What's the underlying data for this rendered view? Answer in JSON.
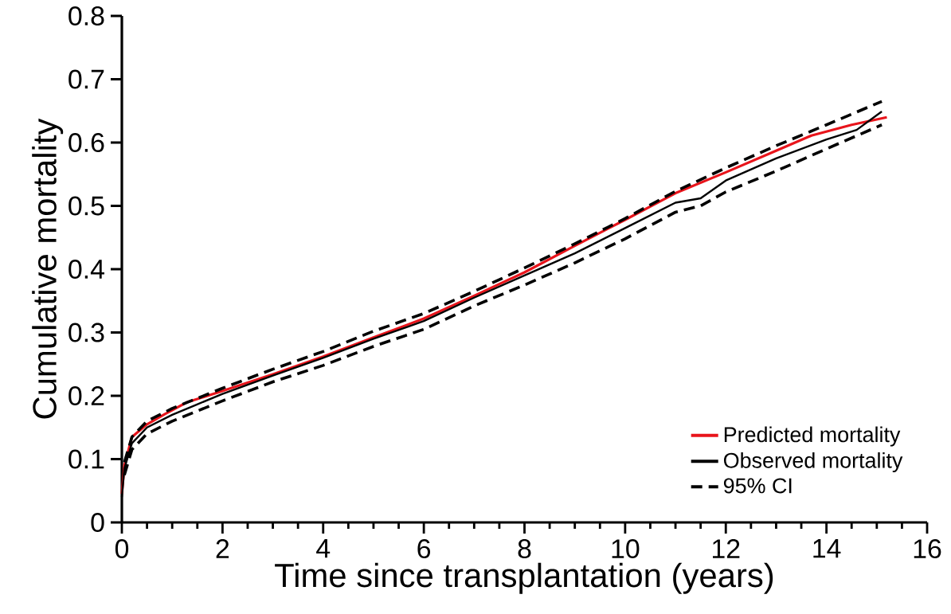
{
  "chart_data": {
    "type": "line",
    "xlabel": "Time since transplantation (years)",
    "ylabel": "Cumulative mortality",
    "xlim": [
      0,
      16
    ],
    "ylim": [
      0,
      0.8
    ],
    "xticks": [
      0,
      2,
      4,
      6,
      8,
      10,
      12,
      14,
      16
    ],
    "yticks": [
      0,
      0.1,
      0.2,
      0.3,
      0.4,
      0.5,
      0.6,
      0.7,
      0.8
    ],
    "legend": "bottom right",
    "marker": "none",
    "series": [
      {
        "name": "Predicted mortality",
        "color": "#e8141b",
        "line_style": "solid",
        "x": [
          0,
          0.05,
          0.2,
          0.5,
          0.85,
          1.3,
          1.9,
          3,
          4,
          5,
          6,
          7,
          8,
          9,
          10,
          11,
          12,
          13,
          13.7,
          14.5,
          15.2
        ],
        "values": [
          0.045,
          0.09,
          0.135,
          0.155,
          0.171,
          0.19,
          0.205,
          0.234,
          0.262,
          0.292,
          0.322,
          0.358,
          0.395,
          0.437,
          0.478,
          0.52,
          0.553,
          0.587,
          0.611,
          0.628,
          0.64
        ]
      },
      {
        "name": "Observed mortality",
        "color": "#000000",
        "line_style": "solid",
        "x": [
          0,
          0.05,
          0.2,
          0.5,
          1,
          2,
          3,
          4,
          5,
          6,
          7,
          8,
          9,
          10,
          11,
          11.5,
          12,
          13,
          14,
          14.6,
          15.1
        ],
        "values": [
          0.04,
          0.085,
          0.125,
          0.15,
          0.17,
          0.203,
          0.232,
          0.26,
          0.29,
          0.318,
          0.355,
          0.39,
          0.425,
          0.465,
          0.505,
          0.512,
          0.54,
          0.575,
          0.605,
          0.62,
          0.649
        ]
      },
      {
        "name": "95% CI",
        "color": "#000000",
        "line_style": "dashed",
        "x": [
          0.05,
          0.2,
          0.5,
          1,
          2,
          3,
          4,
          5,
          6,
          7,
          8,
          9,
          10,
          11,
          12,
          13,
          14,
          15.1
        ],
        "values": [
          0.095,
          0.135,
          0.16,
          0.18,
          0.212,
          0.242,
          0.27,
          0.302,
          0.33,
          0.365,
          0.402,
          0.44,
          0.48,
          0.523,
          0.56,
          0.595,
          0.628,
          0.665
        ]
      },
      {
        "color": "#000000",
        "line_style": "dashed",
        "x": [
          0.05,
          0.2,
          0.5,
          1,
          2,
          3,
          4,
          5,
          6,
          7,
          8,
          9,
          10,
          11,
          11.5,
          12,
          13,
          14,
          15.1
        ],
        "values": [
          0.075,
          0.115,
          0.14,
          0.16,
          0.192,
          0.222,
          0.248,
          0.278,
          0.305,
          0.342,
          0.375,
          0.41,
          0.448,
          0.49,
          0.5,
          0.522,
          0.555,
          0.59,
          0.628
        ]
      }
    ]
  }
}
